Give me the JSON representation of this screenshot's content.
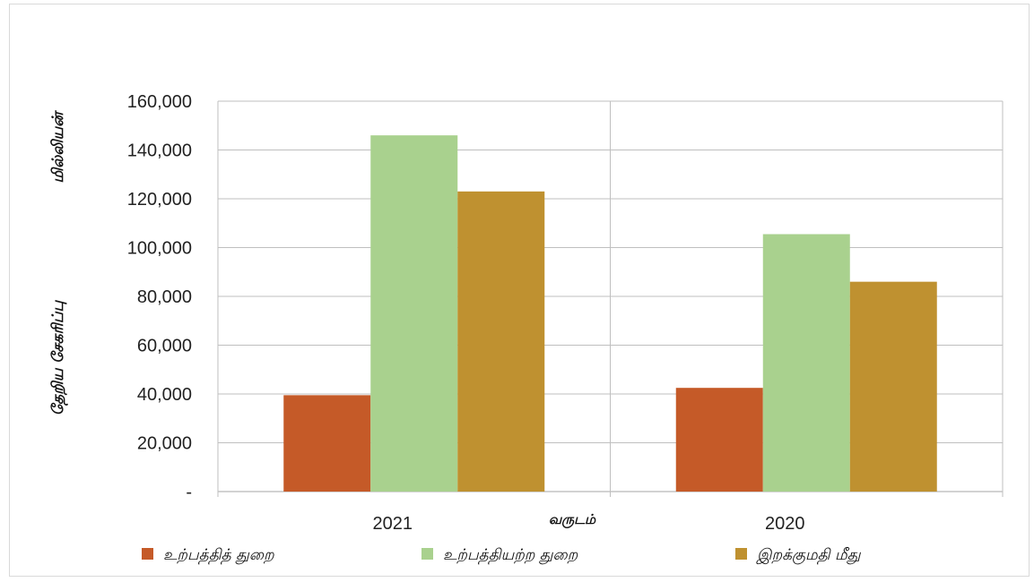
{
  "chart_data": {
    "type": "bar",
    "categories": [
      "2021",
      "2020"
    ],
    "series": [
      {
        "name": "உற்பத்தித் துறை",
        "values": [
          39500,
          42500
        ],
        "color": "#c55a28"
      },
      {
        "name": "உற்பத்தியற்ற துறை",
        "values": [
          146000,
          105500
        ],
        "color": "#a9d18e"
      },
      {
        "name": "இறக்குமதி மீது",
        "values": [
          123000,
          86000
        ],
        "color": "#bf9130"
      }
    ],
    "ylabel_top": "மில்லியன்",
    "ylabel_bottom": "தேறிய சேகரிப்பு",
    "xlabel": "வருடம்",
    "ylim": [
      0,
      160000
    ],
    "yticks": [
      0,
      20000,
      40000,
      60000,
      80000,
      100000,
      120000,
      140000,
      160000
    ],
    "ytick_labels": [
      "-",
      "20,000",
      "40,000",
      "60,000",
      "80,000",
      "100,000",
      "120,000",
      "140,000",
      "160,000"
    ],
    "grid": true,
    "legend_position": "bottom"
  }
}
